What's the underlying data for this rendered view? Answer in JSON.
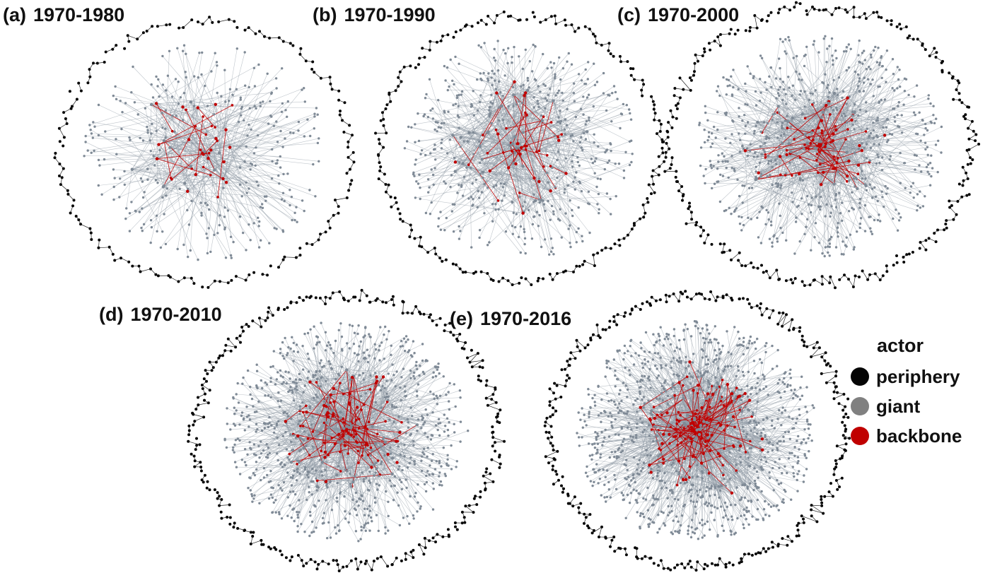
{
  "colors": {
    "periphery": "#050505",
    "giant": "#7f8a96",
    "giant_edge": "#8d97a3",
    "backbone": "#c00000"
  },
  "panels": [
    {
      "id": "a",
      "tag": "(a)",
      "label": "1970-1980",
      "density": 1,
      "ring": 150,
      "backbone_share": 0.05
    },
    {
      "id": "b",
      "tag": "(b)",
      "label": "1970-1990",
      "density": 2,
      "ring": 190,
      "backbone_share": 0.06
    },
    {
      "id": "c",
      "tag": "(c)",
      "label": "1970-2000",
      "density": 3,
      "ring": 240,
      "backbone_share": 0.07
    },
    {
      "id": "d",
      "tag": "(d)",
      "label": "1970-2010",
      "density": 4,
      "ring": 270,
      "backbone_share": 0.08
    },
    {
      "id": "e",
      "tag": "(e)",
      "label": "1970-2016",
      "density": 5,
      "ring": 290,
      "backbone_share": 0.1
    }
  ],
  "legend": {
    "title": "actor",
    "items": [
      {
        "label": "periphery",
        "color": "#050505"
      },
      {
        "label": "giant",
        "color": "#808080"
      },
      {
        "label": "backbone",
        "color": "#c00000"
      }
    ]
  }
}
